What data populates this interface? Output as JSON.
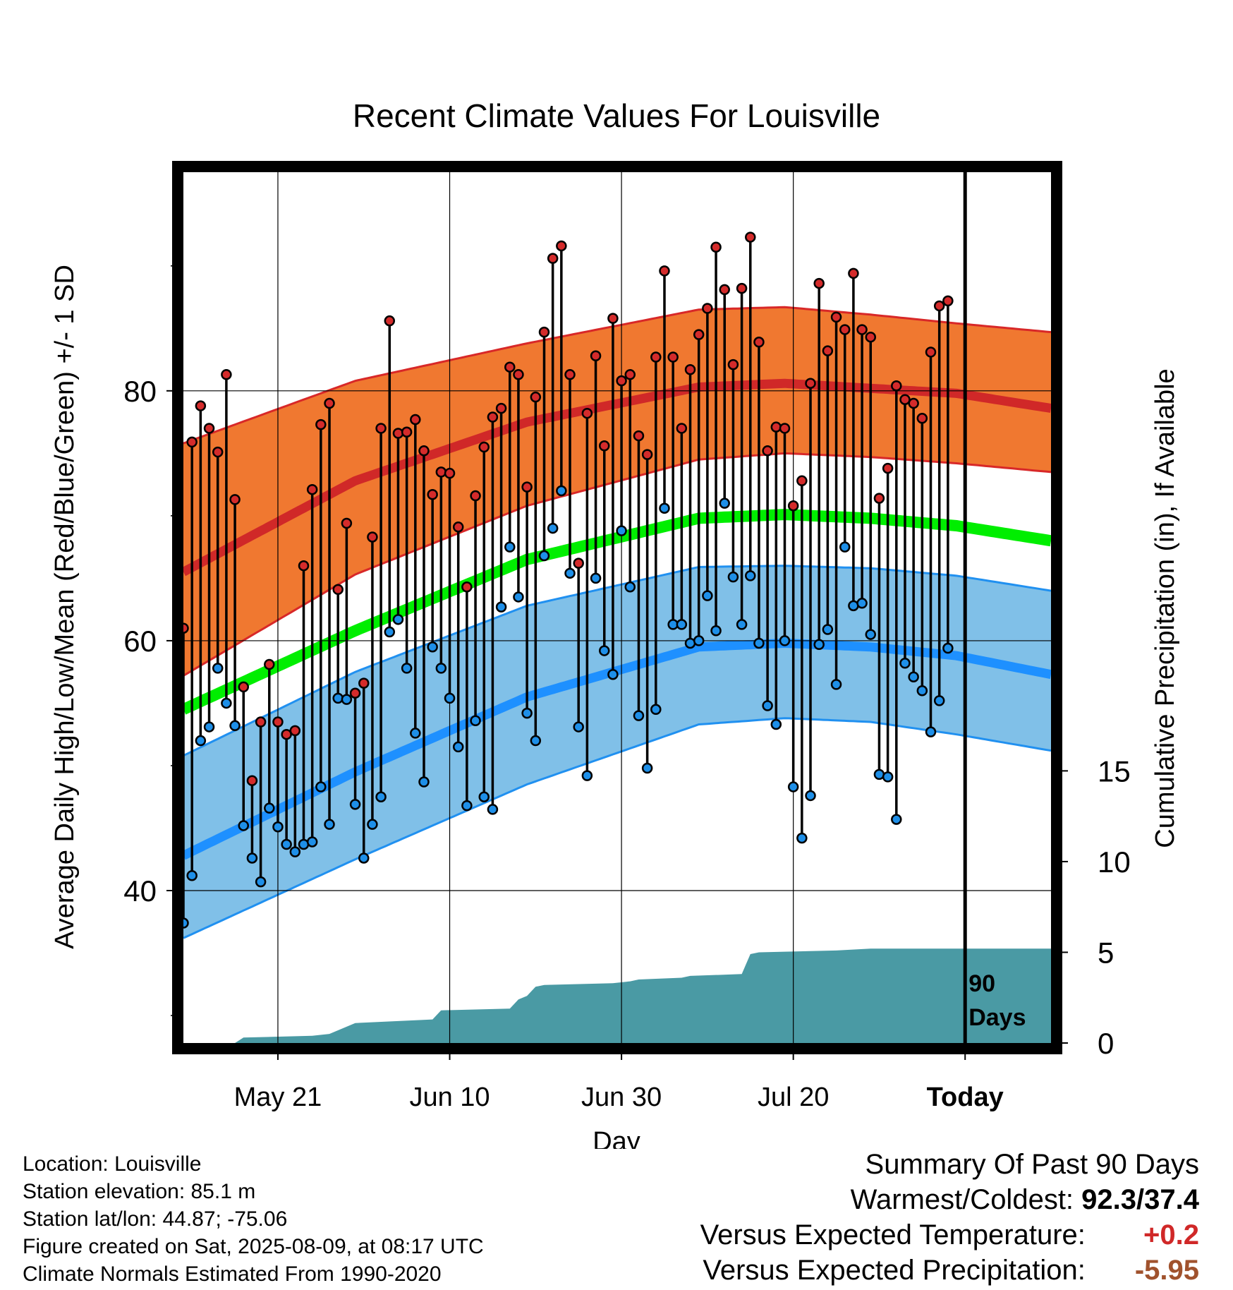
{
  "chart_data": {
    "type": "line",
    "title": "Recent Climate Values For Louisville",
    "xlabel": "Day",
    "ylabel": "Average Daily High/Low/Mean (Red/Blue/Green) +/- 1 SD",
    "y2label": "Cumulative Precipitation (in), If Available",
    "x_tick_labels": [
      "May 21",
      "Jun 10",
      "Jun 30",
      "Jul 20",
      "Today"
    ],
    "x_tick_days": [
      21,
      41,
      61,
      81,
      101
    ],
    "x_start_day": 10,
    "x_end_day": 111,
    "today_day": 101,
    "y_ticks": [
      40,
      60,
      80
    ],
    "ylim": [
      27.8,
      97.5
    ],
    "y2_ticks": [
      0,
      5,
      10,
      15
    ],
    "y2lim": [
      0,
      48
    ],
    "period_label": "90 Days",
    "grid": true,
    "colors": {
      "high_band": "#f07830",
      "high_edge": "#d82828",
      "high_mean": "#d02828",
      "low_band": "#80c0e8",
      "low_edge": "#2090f0",
      "low_mean": "#1e90ff",
      "mean_normal": "#00ee00",
      "precip": "#4a9aa4",
      "high_marker": "#d42b2b",
      "low_marker": "#1e8fe8"
    },
    "normal_high": {
      "days": [
        10,
        30,
        50,
        70,
        80,
        90,
        100,
        111
      ],
      "mean": [
        65.5,
        72.8,
        77.5,
        80.3,
        80.6,
        80.2,
        79.8,
        78.6
      ],
      "sd_upper": [
        75.8,
        80.8,
        83.8,
        86.5,
        86.7,
        86.1,
        85.4,
        84.7
      ],
      "sd_lower": [
        57.2,
        65.3,
        70.8,
        74.5,
        75.0,
        74.7,
        74.2,
        73.5
      ]
    },
    "normal_mean": {
      "days": [
        10,
        30,
        50,
        70,
        80,
        90,
        100,
        111
      ],
      "values": [
        54.5,
        60.8,
        66.5,
        69.8,
        70.1,
        69.8,
        69.2,
        68.0
      ]
    },
    "normal_low": {
      "days": [
        10,
        30,
        50,
        70,
        80,
        90,
        100,
        111
      ],
      "mean": [
        42.8,
        49.5,
        55.5,
        59.5,
        59.8,
        59.5,
        58.8,
        57.3
      ],
      "sd_upper": [
        50.8,
        57.5,
        62.8,
        65.9,
        66.0,
        65.8,
        65.2,
        64.0
      ],
      "sd_lower": [
        36.2,
        42.5,
        48.5,
        53.3,
        53.8,
        53.5,
        52.5,
        51.2
      ]
    },
    "observed": {
      "days": [
        10,
        11,
        12,
        13,
        14,
        15,
        16,
        17,
        18,
        19,
        20,
        21,
        22,
        23,
        24,
        25,
        26,
        27,
        28,
        29,
        30,
        31,
        32,
        33,
        34,
        35,
        36,
        37,
        38,
        39,
        40,
        41,
        42,
        43,
        44,
        45,
        46,
        47,
        48,
        49,
        50,
        51,
        52,
        53,
        54,
        55,
        56,
        57,
        58,
        59,
        60,
        61,
        62,
        63,
        64,
        65,
        66,
        67,
        68,
        69,
        70,
        71,
        72,
        73,
        74,
        75,
        76,
        77,
        78,
        79,
        80,
        81,
        82,
        83,
        84,
        85,
        86,
        87,
        88,
        89,
        90,
        91,
        92,
        93,
        94,
        95,
        96,
        97,
        98,
        99,
        100
      ],
      "highs": [
        61.0,
        75.9,
        78.8,
        77.0,
        75.1,
        81.3,
        71.3,
        56.3,
        48.8,
        53.5,
        58.1,
        53.5,
        52.5,
        52.8,
        66.0,
        72.1,
        77.3,
        79.0,
        64.1,
        69.4,
        55.8,
        56.6,
        68.3,
        77.0,
        85.6,
        76.6,
        76.7,
        77.7,
        75.2,
        71.7,
        73.5,
        73.4,
        69.1,
        64.3,
        71.6,
        75.5,
        77.9,
        78.6,
        81.9,
        81.3,
        72.3,
        79.5,
        84.7,
        90.6,
        91.6,
        81.3,
        66.2,
        78.2,
        82.8,
        75.6,
        85.8,
        80.8,
        81.3,
        76.4,
        74.9,
        82.7,
        89.6,
        82.7,
        77.0,
        81.7,
        84.5,
        86.6,
        91.5,
        88.1,
        82.1,
        88.2,
        92.3,
        83.9,
        75.2,
        77.1,
        77.0,
        70.8,
        72.8,
        80.6,
        88.6,
        83.2,
        85.9,
        84.9,
        89.4,
        84.9,
        84.3,
        71.4,
        73.8,
        80.4,
        79.3,
        79.0,
        77.8,
        83.1,
        86.8,
        87.2
      ],
      "lows": [
        37.4,
        41.2,
        52.0,
        53.1,
        57.8,
        55.0,
        53.2,
        45.2,
        42.6,
        40.7,
        46.6,
        45.1,
        43.7,
        43.1,
        43.7,
        43.9,
        48.3,
        45.3,
        55.4,
        55.3,
        46.9,
        42.6,
        45.3,
        47.5,
        60.7,
        61.7,
        57.8,
        52.6,
        48.7,
        59.5,
        57.8,
        55.4,
        51.5,
        46.8,
        53.6,
        47.5,
        46.5,
        62.7,
        67.5,
        63.5,
        54.2,
        52.0,
        66.8,
        69.0,
        72.0,
        65.4,
        53.1,
        49.2,
        65.0,
        59.2,
        57.3,
        68.8,
        64.3,
        54.0,
        49.8,
        54.5,
        70.6,
        61.3,
        61.3,
        59.8,
        60.0,
        63.6,
        60.8,
        71.0,
        65.1,
        61.3,
        65.2,
        59.8,
        54.8,
        53.3,
        60.0,
        48.3,
        44.2,
        47.6,
        59.7,
        60.9,
        56.5,
        67.5,
        62.8,
        63.0,
        60.5,
        49.3,
        49.1,
        45.7,
        58.2,
        57.1,
        56.0,
        52.7,
        55.2,
        59.4
      ]
    },
    "precip": {
      "days": [
        10,
        16,
        17,
        25,
        27,
        28,
        29,
        30,
        39,
        40,
        48,
        49,
        50,
        51,
        52,
        60,
        62,
        63,
        68,
        69,
        75,
        76,
        77,
        86,
        90,
        100,
        101,
        111
      ],
      "values": [
        0.0,
        0.0,
        0.3,
        0.4,
        0.5,
        0.7,
        0.9,
        1.1,
        1.3,
        1.8,
        1.9,
        2.4,
        2.6,
        3.1,
        3.2,
        3.3,
        3.4,
        3.5,
        3.6,
        3.7,
        3.8,
        4.9,
        5.0,
        5.1,
        5.2,
        5.2,
        5.2,
        5.2
      ]
    }
  },
  "info": {
    "location": "Location: Louisville",
    "elevation": "Station elevation: 85.1 m",
    "latlon": "Station lat/lon: 44.87; -75.06",
    "created": "Figure created on Sat, 2025-08-09, at 08:17 UTC",
    "normals": "Climate Normals Estimated From 1990-2020"
  },
  "summary": {
    "title": "Summary Of Past 90 Days",
    "warm_cold_label": "Warmest/Coldest:",
    "warm_cold_value": "92.3/37.4",
    "temp_label": "Versus Expected Temperature:",
    "temp_value": "+0.2",
    "temp_color": "#d02828",
    "precip_label": "Versus Expected Precipitation:",
    "precip_value": "-5.95",
    "precip_color": "#a0522d"
  }
}
